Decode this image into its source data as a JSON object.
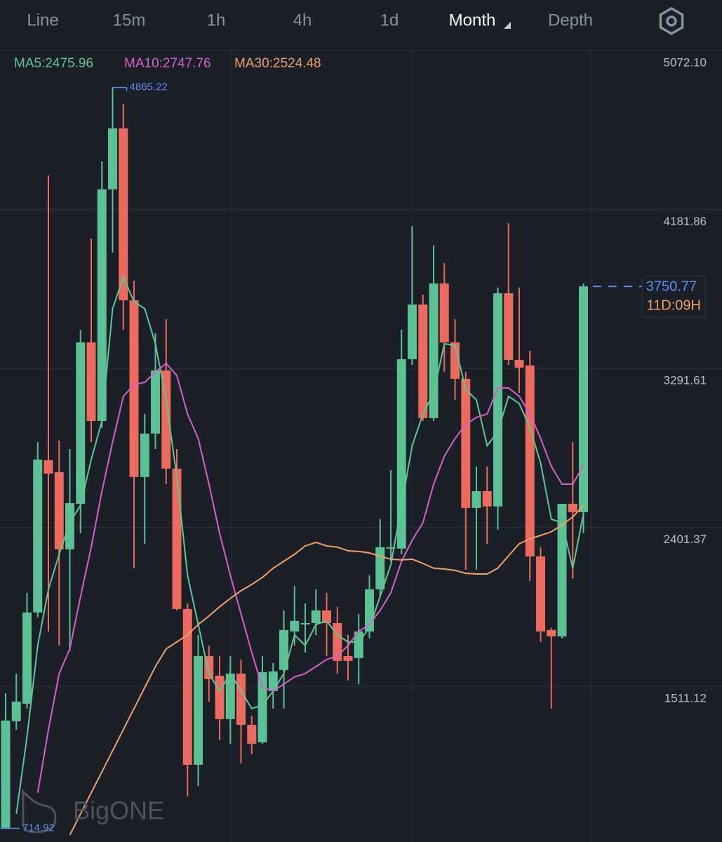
{
  "tabs": [
    "Line",
    "15m",
    "1h",
    "4h",
    "1d",
    "Month",
    "Depth"
  ],
  "active_tab": "Month",
  "watermark": "BigONE",
  "chart_data": {
    "type": "candlestick",
    "up_color": "#5cc095",
    "down_color": "#ec6a5e",
    "ylim": [
      638.5,
      5072.1
    ],
    "yticks": [
      {
        "value": 5072.1,
        "label": "5072.10"
      },
      4181.86,
      3291.61,
      2401.37,
      1511.12
    ],
    "grid": true,
    "open": [
      718,
      1315,
      1413,
      1924,
      2777,
      2710,
      2278,
      2533,
      3437,
      2997,
      4294,
      4636,
      3673,
      2683,
      2926,
      3280,
      2730,
      1944,
      1071,
      1680,
      1570,
      1327,
      1582,
      1295,
      1197,
      1484,
      1602,
      1818,
      1857,
      1865,
      1936,
      1865,
      1680,
      1669,
      1818,
      2054,
      2282,
      2282,
      3343,
      3649,
      3013,
      3767,
      3437,
      3233,
      2510,
      2604,
      2518,
      3712,
      3339,
      3308,
      2238,
      1826,
      1790,
      2533,
      2486
    ],
    "high": [
      1472,
      1582,
      2034,
      2879,
      4372,
      2887,
      2840,
      3508,
      4019,
      4451,
      4865.22,
      4773,
      3783,
      3036,
      3488,
      3567,
      2840,
      1975,
      1798,
      1739,
      1680,
      1680,
      1661,
      1346,
      1680,
      1641,
      1936,
      2073,
      1975,
      2054,
      2034,
      1956,
      1798,
      1916,
      2133,
      2447,
      2722,
      3508,
      4089,
      3704,
      3980,
      3881,
      3567,
      3272,
      2742,
      2742,
      3744,
      4105,
      3744,
      3390,
      2290,
      1838,
      2533,
      2879,
      3767
    ],
    "low": [
      714.92,
      1268,
      1386,
      1897,
      1818,
      1739,
      1708,
      2368,
      2879,
      2958,
      3940,
      3508,
      2172,
      2309,
      2840,
      2643,
      1936,
      894,
      952,
      1425,
      1209,
      1189,
      1079,
      1130,
      1189,
      1386,
      1386,
      1739,
      1700,
      1798,
      1680,
      1582,
      1543,
      1523,
      1779,
      2014,
      2211,
      2250,
      3311,
      2997,
      2997,
      3272,
      3115,
      2164,
      2164,
      2309,
      2388,
      3311,
      3154,
      2101,
      1759,
      1386,
      1779,
      2113,
      2368
    ],
    "close": [
      1319,
      1425,
      1924,
      2781,
      2702,
      2278,
      2537,
      3437,
      2997,
      4294,
      4636,
      3673,
      2683,
      2926,
      3280,
      2730,
      1944,
      1071,
      1680,
      1551,
      1327,
      1582,
      1295,
      1189,
      1590,
      1594,
      1826,
      1877,
      1865,
      1936,
      1865,
      1653,
      1653,
      1818,
      2054,
      2290,
      2290,
      3343,
      3649,
      3013,
      3767,
      3437,
      3233,
      2510,
      2604,
      2518,
      3712,
      3339,
      3296,
      2238,
      1818,
      1790,
      2533,
      2486,
      3750.77
    ],
    "series": [
      {
        "name": "MA5:2475.96",
        "color": "#5ec795",
        "values": [
          null,
          796,
          1228,
          1739,
          2054,
          2250,
          2427,
          2525,
          2781,
          2997,
          3626,
          3803,
          3665,
          3626,
          3429,
          3115,
          2683,
          2132,
          1857,
          1582,
          1484,
          1582,
          1484,
          1386,
          1405,
          1484,
          1582,
          1798,
          1739,
          1857,
          1877,
          1798,
          1759,
          1759,
          1838,
          2014,
          2191,
          2525,
          2859,
          3036,
          3154,
          3429,
          3421,
          3174,
          3115,
          2859,
          2938,
          3135,
          3095,
          2958,
          2761,
          2447,
          2427,
          2172,
          2475.96
        ]
      },
      {
        "name": "MA10:2747.76",
        "color": "#d660c8",
        "values": [
          null,
          null,
          null,
          914,
          1268,
          1582,
          1720,
          2014,
          2290,
          2604,
          2879,
          3135,
          3201,
          3213,
          3272,
          3319,
          3252,
          3036,
          2899,
          2643,
          2368,
          2132,
          1916,
          1700,
          1504,
          1484,
          1523,
          1563,
          1582,
          1621,
          1661,
          1680,
          1739,
          1818,
          1857,
          1936,
          2034,
          2211,
          2329,
          2427,
          2643,
          2800,
          2899,
          2977,
          3017,
          3036,
          3182,
          3182,
          3135,
          3036,
          2899,
          2742,
          2643,
          2643,
          2747.76
        ]
      },
      {
        "name": "MA30:2524.48",
        "color": "#f0a06a",
        "values": [
          null,
          null,
          null,
          null,
          null,
          null,
          678,
          796,
          914,
          1032,
          1150,
          1268,
          1386,
          1504,
          1621,
          1720,
          1759,
          1798,
          1857,
          1904,
          1956,
          2003,
          2046,
          2081,
          2121,
          2172,
          2211,
          2250,
          2297,
          2317,
          2297,
          2290,
          2270,
          2266,
          2258,
          2239,
          2223,
          2219,
          2223,
          2199,
          2172,
          2168,
          2160,
          2144,
          2140,
          2140,
          2172,
          2242,
          2309,
          2337,
          2356,
          2376,
          2415,
          2459,
          2524.48
        ]
      }
    ],
    "max_marker": 4865.22,
    "min_marker": 714.92,
    "last_price": 3750.77,
    "countdown": "11D:09H"
  }
}
